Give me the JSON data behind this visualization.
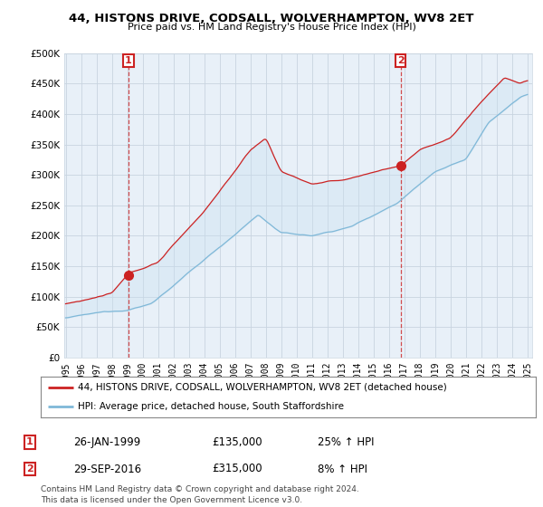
{
  "title": "44, HISTONS DRIVE, CODSALL, WOLVERHAMPTON, WV8 2ET",
  "subtitle": "Price paid vs. HM Land Registry's House Price Index (HPI)",
  "legend_line1": "44, HISTONS DRIVE, CODSALL, WOLVERHAMPTON, WV8 2ET (detached house)",
  "legend_line2": "HPI: Average price, detached house, South Staffordshire",
  "annotation1_label": "1",
  "annotation1_date": "26-JAN-1999",
  "annotation1_price": "£135,000",
  "annotation1_hpi": "25% ↑ HPI",
  "annotation2_label": "2",
  "annotation2_date": "29-SEP-2016",
  "annotation2_price": "£315,000",
  "annotation2_hpi": "8% ↑ HPI",
  "footer": "Contains HM Land Registry data © Crown copyright and database right 2024.\nThis data is licensed under the Open Government Licence v3.0.",
  "hpi_color": "#7fb8d8",
  "price_color": "#cc2222",
  "annotation_color": "#cc2222",
  "background_color": "#ffffff",
  "plot_bg_color": "#e8f0f8",
  "grid_color": "#c8d4e0",
  "ylim": [
    0,
    500000
  ],
  "yticks": [
    0,
    50000,
    100000,
    150000,
    200000,
    250000,
    300000,
    350000,
    400000,
    450000,
    500000
  ],
  "year_start": 1995,
  "year_end": 2025,
  "purchase1_year": 1999.08,
  "purchase1_value": 135000,
  "purchase2_year": 2016.75,
  "purchase2_value": 315000
}
